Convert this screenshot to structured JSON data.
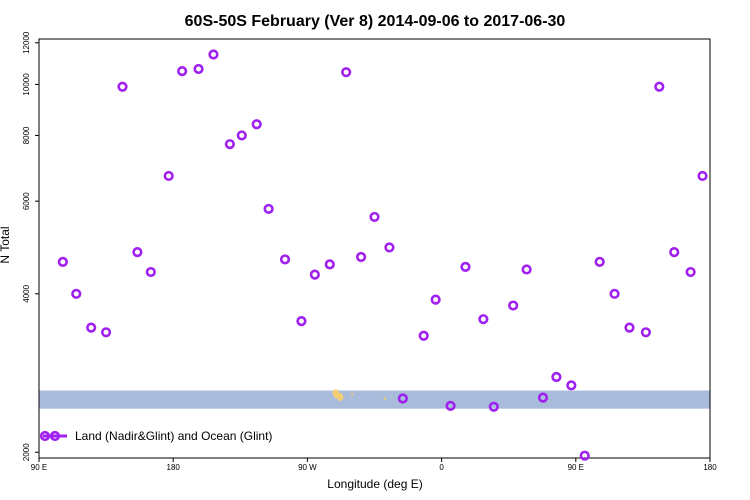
{
  "chart_data": {
    "type": "scatter",
    "title": "60S-50S February (Ver 8)   2014-09-06 to 2017-06-30",
    "xlabel": "Longitude (deg E)",
    "ylabel": "N Total",
    "y_scale": "log",
    "x_ticks": [
      {
        "value": 90,
        "label": "90 E"
      },
      {
        "value": 180,
        "label": "180"
      },
      {
        "value": 270,
        "label": "90 W"
      },
      {
        "value": 360,
        "label": "0"
      },
      {
        "value": 450,
        "label": "90 E"
      },
      {
        "value": 540,
        "label": "180"
      }
    ],
    "y_ticks": [
      2000,
      4000,
      6000,
      8000,
      10000,
      12000
    ],
    "xlim": [
      90,
      540
    ],
    "ylim": [
      1950,
      12200
    ],
    "grid": false,
    "marker_color": "#a020f0",
    "band_color": "#a9bcdc",
    "land_color": "#f2cf73",
    "band_range": [
      2420,
      2620
    ],
    "land_shapes": [
      {
        "lon": 290,
        "lat_value": 2570
      },
      {
        "lon": 292,
        "lat_value": 2545
      },
      {
        "lon": 289,
        "lat_value": 2590
      },
      {
        "lon": 300,
        "lat_value": 2575
      },
      {
        "lon": 322,
        "lat_value": 2530
      }
    ],
    "legend": {
      "label": "Land (Nadir&Glint) and Ocean (Glint)",
      "position": "bottom-left"
    },
    "series": [
      {
        "name": "Land (Nadir&Glint) and Ocean (Glint)",
        "x": [
          106,
          115,
          125,
          135,
          146,
          156,
          165,
          177,
          186,
          197,
          207,
          218,
          226,
          236,
          244,
          255,
          266,
          275,
          285,
          296,
          306,
          315,
          325,
          334,
          348,
          356,
          366,
          376,
          388,
          395,
          408,
          417,
          428,
          437,
          447,
          456,
          466,
          476,
          486,
          497,
          506,
          516,
          527,
          535
        ],
        "y": [
          4600,
          4000,
          3450,
          3380,
          9900,
          4800,
          4400,
          6700,
          10600,
          10700,
          11400,
          7700,
          8000,
          8400,
          5800,
          4650,
          3550,
          4350,
          4550,
          10550,
          4700,
          5600,
          4900,
          2530,
          3330,
          3900,
          2450,
          4500,
          3580,
          2440,
          3800,
          4450,
          2540,
          2780,
          2680,
          1970,
          4600,
          4000,
          3450,
          3380,
          9900,
          4800,
          4400,
          6700
        ]
      }
    ]
  }
}
